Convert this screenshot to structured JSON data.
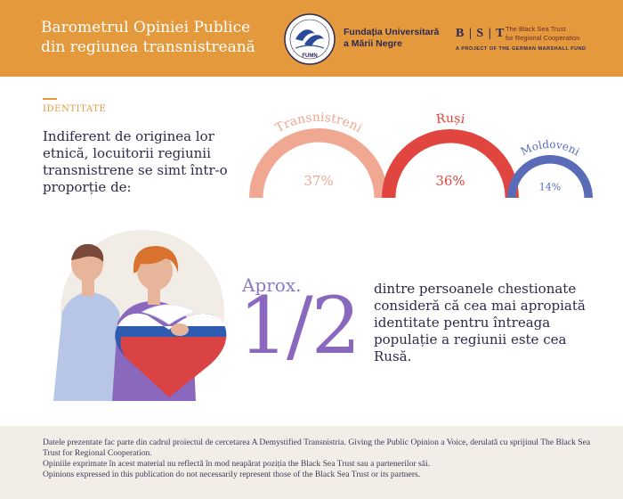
{
  "header": {
    "title_line1": "Barometrul Opiniei Publice",
    "title_line2": "din regiunea transnistreană",
    "fum_line1": "Fundația Universitară",
    "fum_line2": "a Mării Negre",
    "fum_logo_text": "FUMN",
    "bst_letters": "B | S | T",
    "bst_name_line1": "The Black Sea Trust",
    "bst_name_line2": "for Regional Cooperation",
    "bst_sub": "A PROJECT OF THE GERMAN MARSHALL FUND"
  },
  "section": {
    "label": "IDENTITATE",
    "intro": "Indiferent de originea lor etnică, locuitorii regiunii transnistrene se simt într-o proporție de:"
  },
  "chart_data": {
    "type": "pie",
    "categories": [
      "Transnistreni",
      "Ruși",
      "Moldoveni"
    ],
    "values": [
      37,
      36,
      14
    ],
    "labels": [
      "37%",
      "36%",
      "14%"
    ],
    "colors": [
      "#f0a892",
      "#e0453f",
      "#5a6cb8"
    ]
  },
  "highlight": {
    "aprox": "Aprox.",
    "fraction": "1/2",
    "statement": "dintre persoanele chestionate consideră că cea mai apropiată identitate pentru întreaga populație a regiunii este cea Rusă."
  },
  "footer": {
    "line1": "Datele prezentate fac parte din cadrul proiectul de cercetarea A Demystified Transnistria. Giving the Public Opinion a Voice, derulată cu sprijinul The Black Sea Trust for Regional Cooperation.",
    "line2": "Opiniile exprimate în acest material nu reflectă  în mod neapărat poziția  the Black Sea Trust sau a partenerilor săi.",
    "line3": "Opinions expressed in this publication do not necessarily represent those of the Black Sea Trust or its partners."
  }
}
